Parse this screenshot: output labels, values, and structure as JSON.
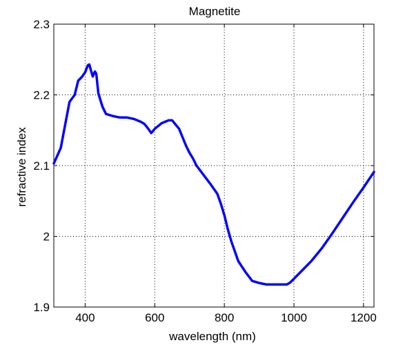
{
  "chart_data": {
    "type": "line",
    "title": "Magnetite",
    "xlabel": "wavelength (nm)",
    "ylabel": "refractive index",
    "xlim": [
      310,
      1230
    ],
    "ylim": [
      1.9,
      2.3
    ],
    "xticks": [
      400,
      600,
      800,
      1000,
      1200
    ],
    "xtick_labels": [
      "400",
      "600",
      "800",
      "1000",
      "1200"
    ],
    "yticks": [
      1.9,
      2.0,
      2.1,
      2.2,
      2.3
    ],
    "ytick_labels": [
      "1.9",
      "2",
      "2.1",
      "2.2",
      "2.3"
    ],
    "grid": true,
    "line_color": "#0000ff",
    "series": [
      {
        "x": [
          310,
          330,
          355,
          370,
          380,
          390,
          400,
          408,
          412,
          417,
          422,
          428,
          432,
          438,
          450,
          460,
          480,
          500,
          520,
          540,
          560,
          570,
          580,
          590,
          600,
          620,
          640,
          650,
          670,
          680,
          690,
          700,
          710,
          720,
          740,
          760,
          780,
          790,
          800,
          810,
          820,
          840,
          860,
          880,
          900,
          920,
          940,
          960,
          980,
          990,
          1000,
          1020,
          1050,
          1080,
          1110,
          1140,
          1170,
          1200,
          1230
        ],
        "y": [
          2.103,
          2.125,
          2.19,
          2.2,
          2.22,
          2.225,
          2.232,
          2.242,
          2.243,
          2.234,
          2.226,
          2.233,
          2.23,
          2.202,
          2.183,
          2.173,
          2.17,
          2.168,
          2.168,
          2.166,
          2.162,
          2.159,
          2.153,
          2.146,
          2.152,
          2.16,
          2.164,
          2.164,
          2.152,
          2.14,
          2.128,
          2.118,
          2.11,
          2.1,
          2.087,
          2.074,
          2.06,
          2.046,
          2.03,
          2.01,
          1.993,
          1.965,
          1.95,
          1.937,
          1.934,
          1.932,
          1.932,
          1.932,
          1.932,
          1.935,
          1.94,
          1.95,
          1.965,
          1.983,
          2.004,
          2.026,
          2.048,
          2.069,
          2.091
        ]
      }
    ]
  }
}
